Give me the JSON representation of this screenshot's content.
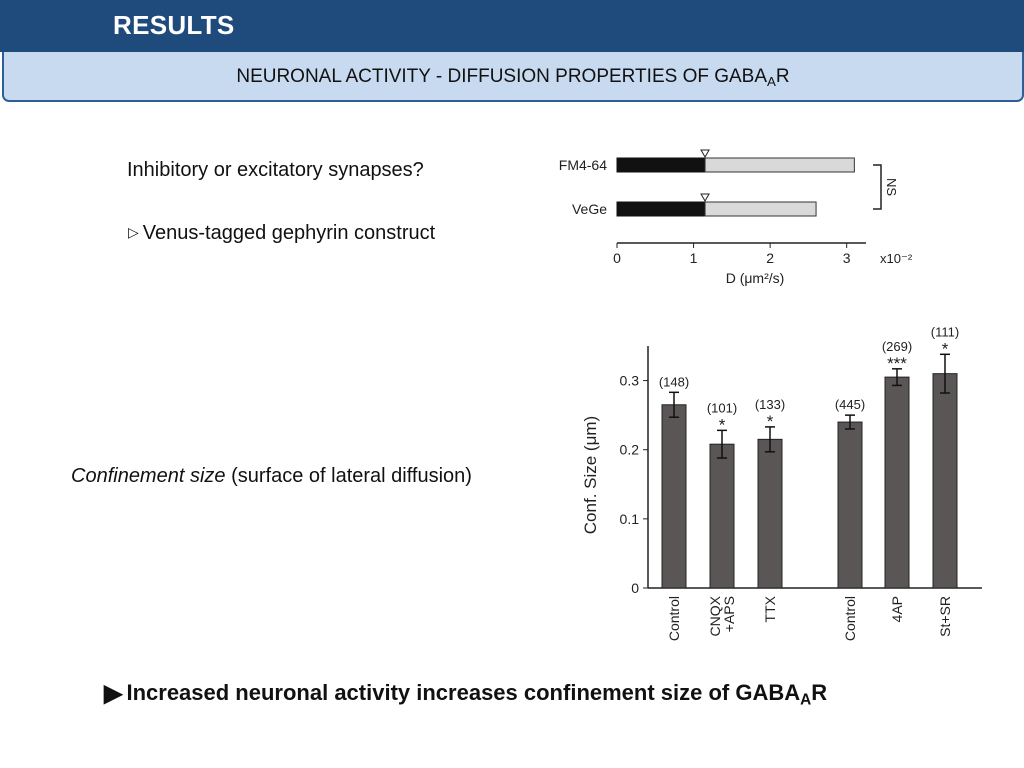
{
  "header": {
    "title": "RESULTS",
    "subtitle_main": "NEURONAL ACTIVITY - DIFFUSION PROPERTIES OF GABA",
    "subtitle_sub": "A",
    "subtitle_end": "R"
  },
  "left": {
    "question": "Inhibitory or excitatory synapses?",
    "bullet_glyph": "▷",
    "bullet_text": "Venus-tagged gephyrin construct",
    "confinement_italic": "Confinement size",
    "confinement_rest": " (surface of lateral diffusion)"
  },
  "conclusion": {
    "glyph": "▶",
    "text_main": "Increased neuronal activity increases confinement size of GABA",
    "text_sub": "A",
    "text_end": "R"
  },
  "chart_data": [
    {
      "type": "bar",
      "orientation": "horizontal",
      "categories": [
        "FM4-64",
        "VeGe"
      ],
      "values": [
        3.1,
        2.6
      ],
      "median_markers": [
        1.15,
        1.15
      ],
      "xlabel": "D (μm²/s)",
      "x_scale_label": "x10⁻²",
      "xticks": [
        "0",
        "1",
        "2",
        "3"
      ],
      "xlim": [
        0,
        3.2
      ],
      "significance": "NS",
      "colors": {
        "low": "#111111",
        "high": "#d9d9d9"
      }
    },
    {
      "type": "bar",
      "categories": [
        "Control",
        "CNQX\n+APS",
        "TTX",
        "Control",
        "4AP",
        "St+SR"
      ],
      "values": [
        0.265,
        0.208,
        0.215,
        0.24,
        0.305,
        0.31
      ],
      "errors": [
        0.018,
        0.02,
        0.018,
        0.01,
        0.012,
        0.028
      ],
      "counts": [
        "(148)",
        "(101)",
        "(133)",
        "(445)",
        "(269)",
        "(111)"
      ],
      "stars": [
        "",
        "*",
        "*",
        "",
        "***",
        "*"
      ],
      "ylabel": "Conf. Size (μm)",
      "yticks": [
        "0",
        "0.1",
        "0.2",
        "0.3"
      ],
      "ylim": [
        0,
        0.35
      ],
      "bar_color": "#5a5656"
    }
  ]
}
